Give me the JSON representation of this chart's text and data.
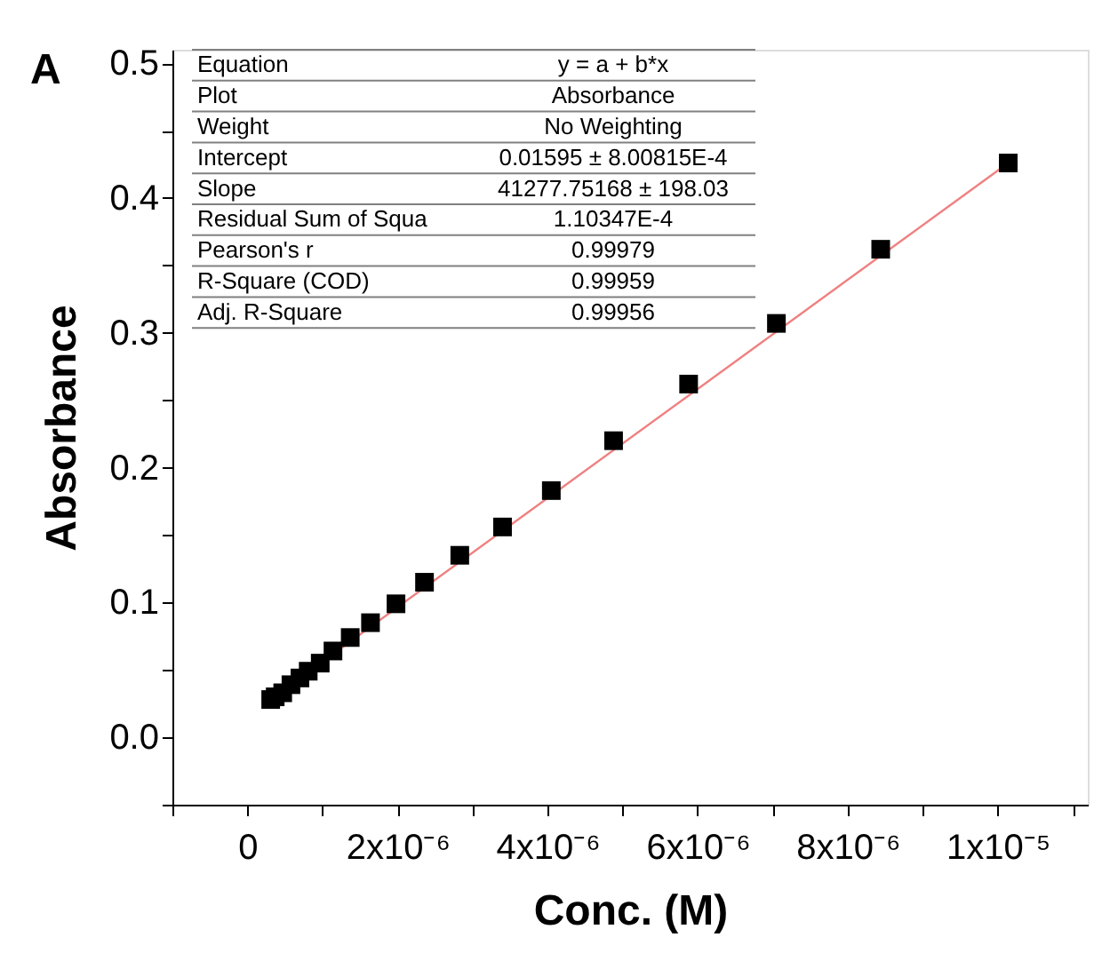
{
  "chart_data": {
    "type": "scatter",
    "xlabel": "Conc. (M)",
    "ylabel": "Absorbance",
    "series": [
      {
        "color": "#000000",
        "marker": "square",
        "x": [
          3.1e-07,
          3.7e-07,
          4.7e-07,
          5.8e-07,
          7e-07,
          8.1e-07,
          9.7e-07,
          1.14e-06,
          1.37e-06,
          1.64e-06,
          1.98e-06,
          2.36e-06,
          2.83e-06,
          3.4e-06,
          4.05e-06,
          4.88e-06,
          5.88e-06,
          7.05e-06,
          8.44e-06,
          1.014e-05
        ],
        "values": [
          0.028,
          0.03,
          0.033,
          0.039,
          0.044,
          0.049,
          0.055,
          0.064,
          0.074,
          0.085,
          0.099,
          0.115,
          0.135,
          0.156,
          0.183,
          0.22,
          0.262,
          0.307,
          0.362,
          0.426
        ]
      },
      {
        "type": "line",
        "color": "#f08080",
        "line_style": "solid",
        "marker": "none",
        "x": [
          3.1e-07,
          1.014e-05
        ],
        "values": [
          0.028,
          0.426
        ]
      }
    ],
    "xlim": [
      -1e-06,
      1.12e-05
    ],
    "xticks": [
      {
        "value": -1e-06,
        "label": null
      },
      0,
      {
        "value": 1e-06,
        "label": null
      },
      {
        "value": 2e-06,
        "label": "2x10⁻⁶"
      },
      {
        "value": 3e-06,
        "label": null
      },
      {
        "value": 4e-06,
        "label": "4x10⁻⁶"
      },
      {
        "value": 5e-06,
        "label": null
      },
      {
        "value": 6e-06,
        "label": "6x10⁻⁶"
      },
      {
        "value": 7e-06,
        "label": null
      },
      {
        "value": 8e-06,
        "label": "8x10⁻⁶"
      },
      {
        "value": 9e-06,
        "label": null
      },
      {
        "value": 1e-05,
        "label": "1x10⁻⁵"
      },
      {
        "value": 1.1e-05,
        "label": null
      }
    ],
    "ylim": [
      -0.05,
      0.51
    ],
    "yticks": [
      {
        "value": -0.05,
        "label": null
      },
      {
        "value": 0,
        "label": "0.0"
      },
      {
        "value": 0.05,
        "label": null
      },
      0.1,
      {
        "value": 0.15,
        "label": null
      },
      0.2,
      {
        "value": 0.25,
        "label": null
      },
      0.3,
      {
        "value": 0.35,
        "label": null
      },
      0.4,
      {
        "value": 0.45,
        "label": null
      },
      0.5
    ],
    "grid": false,
    "annotations": [
      "A",
      "Equation",
      "y = a + b*x",
      "Plot",
      "Absorbance",
      "Weight",
      "No Weighting",
      "Intercept",
      "0.01595 ± 8.00815E-4",
      "Slope",
      "41277.75168 ± 198.03",
      "Residual Sum of Squa",
      "1.10347E-4",
      "Pearson's r",
      "0.99979",
      "R-Square (COD)",
      "0.99959",
      "Adj. R-Square",
      "0.99956"
    ]
  }
}
